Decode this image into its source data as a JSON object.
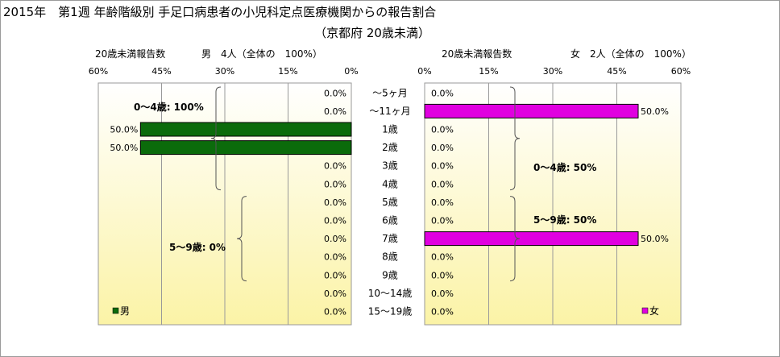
{
  "title": "2015年　第1週 年齢階級別 手足口病患者の小児科定点医療機関からの報告割合",
  "subtitle": "（京都府 20歳未満）",
  "colors": {
    "male": "#0b6b0b",
    "female": "#e000e0",
    "plot_top": "#ffffff",
    "plot_bottom": "#fbf3a6",
    "grid": "#9a9a9a"
  },
  "chart_data": [
    {
      "type": "bar",
      "panel": "male",
      "orientation": "horizontal-reversed",
      "header_left": "20歳未満報告数",
      "header_right": "男　4人（全体の　100%）",
      "legend": "男",
      "categories": [
        "～5ヶ月",
        "～11ヶ月",
        "1歳",
        "2歳",
        "3歳",
        "4歳",
        "5歳",
        "6歳",
        "7歳",
        "8歳",
        "9歳",
        "10～14歳",
        "15～19歳"
      ],
      "values": [
        0,
        0,
        50,
        50,
        0,
        0,
        0,
        0,
        0,
        0,
        0,
        0,
        0
      ],
      "value_labels": [
        "0.0%",
        "0.0%",
        "50.0%",
        "50.0%",
        "0.0%",
        "0.0%",
        "0.0%",
        "0.0%",
        "0.0%",
        "0.0%",
        "0.0%",
        "0.0%",
        "0.0%"
      ],
      "xlim": [
        0,
        60
      ],
      "xticks": [
        "0%",
        "15%",
        "30%",
        "45%",
        "60%"
      ],
      "annotations": [
        {
          "text": "0～4歳: 100%",
          "from": 0,
          "to": 5
        },
        {
          "text": "5～9歳: 0%",
          "from": 6,
          "to": 10
        }
      ]
    },
    {
      "type": "bar",
      "panel": "female",
      "orientation": "horizontal",
      "header_left": "20歳未満報告数",
      "header_right": "女　2人（全体の　100%）",
      "legend": "女",
      "categories": [
        "～5ヶ月",
        "～11ヶ月",
        "1歳",
        "2歳",
        "3歳",
        "4歳",
        "5歳",
        "6歳",
        "7歳",
        "8歳",
        "9歳",
        "10～14歳",
        "15～19歳"
      ],
      "values": [
        0,
        50,
        0,
        0,
        0,
        0,
        0,
        0,
        50,
        0,
        0,
        0,
        0
      ],
      "value_labels": [
        "0.0%",
        "50.0%",
        "0.0%",
        "0.0%",
        "0.0%",
        "0.0%",
        "0.0%",
        "0.0%",
        "50.0%",
        "0.0%",
        "0.0%",
        "0.0%",
        "0.0%"
      ],
      "xlim": [
        0,
        60
      ],
      "xticks": [
        "0%",
        "15%",
        "30%",
        "45%",
        "60%"
      ],
      "annotations": [
        {
          "text": "0～4歳: 50%",
          "from": 0,
          "to": 5
        },
        {
          "text": "5～9歳: 50%",
          "from": 6,
          "to": 10
        }
      ]
    }
  ]
}
